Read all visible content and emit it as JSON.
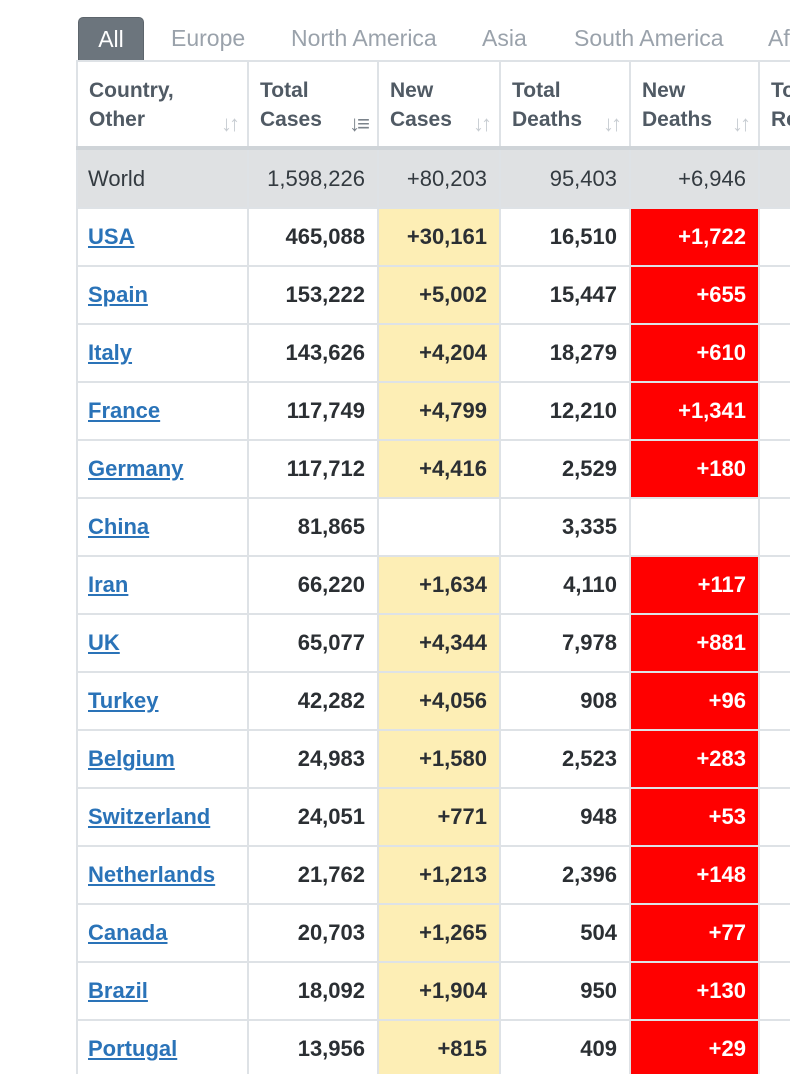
{
  "tabs": [
    {
      "label": "All",
      "active": true
    },
    {
      "label": "Europe"
    },
    {
      "label": "North America"
    },
    {
      "label": "Asia"
    },
    {
      "label": "South America"
    },
    {
      "label": "Af"
    }
  ],
  "columns": [
    {
      "line1": "Country,",
      "line2": "Other"
    },
    {
      "line1": "Total",
      "line2": "Cases"
    },
    {
      "line1": "New",
      "line2": "Cases"
    },
    {
      "line1": "Total",
      "line2": "Deaths"
    },
    {
      "line1": "New",
      "line2": "Deaths"
    },
    {
      "line1": "To",
      "line2": "Re"
    }
  ],
  "sort_icons": {
    "inactive": "sort-arrows-icon",
    "active": "sort-desc-icon"
  },
  "colors": {
    "new_cases_highlight": "#fdeeb5",
    "new_deaths_highlight": "#ff0000",
    "link": "#2a73b8",
    "world_row": "#dfe1e3",
    "active_tab": "#6c757d"
  },
  "world": {
    "country": "World",
    "total_cases": "1,598,226",
    "new_cases": "+80,203",
    "total_deaths": "95,403",
    "new_deaths": "+6,946"
  },
  "rows": [
    {
      "country": "USA",
      "total_cases": "465,088",
      "new_cases": "+30,161",
      "total_deaths": "16,510",
      "new_deaths": "+1,722"
    },
    {
      "country": "Spain",
      "total_cases": "153,222",
      "new_cases": "+5,002",
      "total_deaths": "15,447",
      "new_deaths": "+655"
    },
    {
      "country": "Italy",
      "total_cases": "143,626",
      "new_cases": "+4,204",
      "total_deaths": "18,279",
      "new_deaths": "+610"
    },
    {
      "country": "France",
      "total_cases": "117,749",
      "new_cases": "+4,799",
      "total_deaths": "12,210",
      "new_deaths": "+1,341"
    },
    {
      "country": "Germany",
      "total_cases": "117,712",
      "new_cases": "+4,416",
      "total_deaths": "2,529",
      "new_deaths": "+180"
    },
    {
      "country": "China",
      "total_cases": "81,865",
      "new_cases": "",
      "total_deaths": "3,335",
      "new_deaths": ""
    },
    {
      "country": "Iran",
      "total_cases": "66,220",
      "new_cases": "+1,634",
      "total_deaths": "4,110",
      "new_deaths": "+117"
    },
    {
      "country": "UK",
      "total_cases": "65,077",
      "new_cases": "+4,344",
      "total_deaths": "7,978",
      "new_deaths": "+881"
    },
    {
      "country": "Turkey",
      "total_cases": "42,282",
      "new_cases": "+4,056",
      "total_deaths": "908",
      "new_deaths": "+96"
    },
    {
      "country": "Belgium",
      "total_cases": "24,983",
      "new_cases": "+1,580",
      "total_deaths": "2,523",
      "new_deaths": "+283"
    },
    {
      "country": "Switzerland",
      "total_cases": "24,051",
      "new_cases": "+771",
      "total_deaths": "948",
      "new_deaths": "+53"
    },
    {
      "country": "Netherlands",
      "total_cases": "21,762",
      "new_cases": "+1,213",
      "total_deaths": "2,396",
      "new_deaths": "+148"
    },
    {
      "country": "Canada",
      "total_cases": "20,703",
      "new_cases": "+1,265",
      "total_deaths": "504",
      "new_deaths": "+77"
    },
    {
      "country": "Brazil",
      "total_cases": "18,092",
      "new_cases": "+1,904",
      "total_deaths": "950",
      "new_deaths": "+130"
    },
    {
      "country": "Portugal",
      "total_cases": "13,956",
      "new_cases": "+815",
      "total_deaths": "409",
      "new_deaths": "+29"
    }
  ]
}
